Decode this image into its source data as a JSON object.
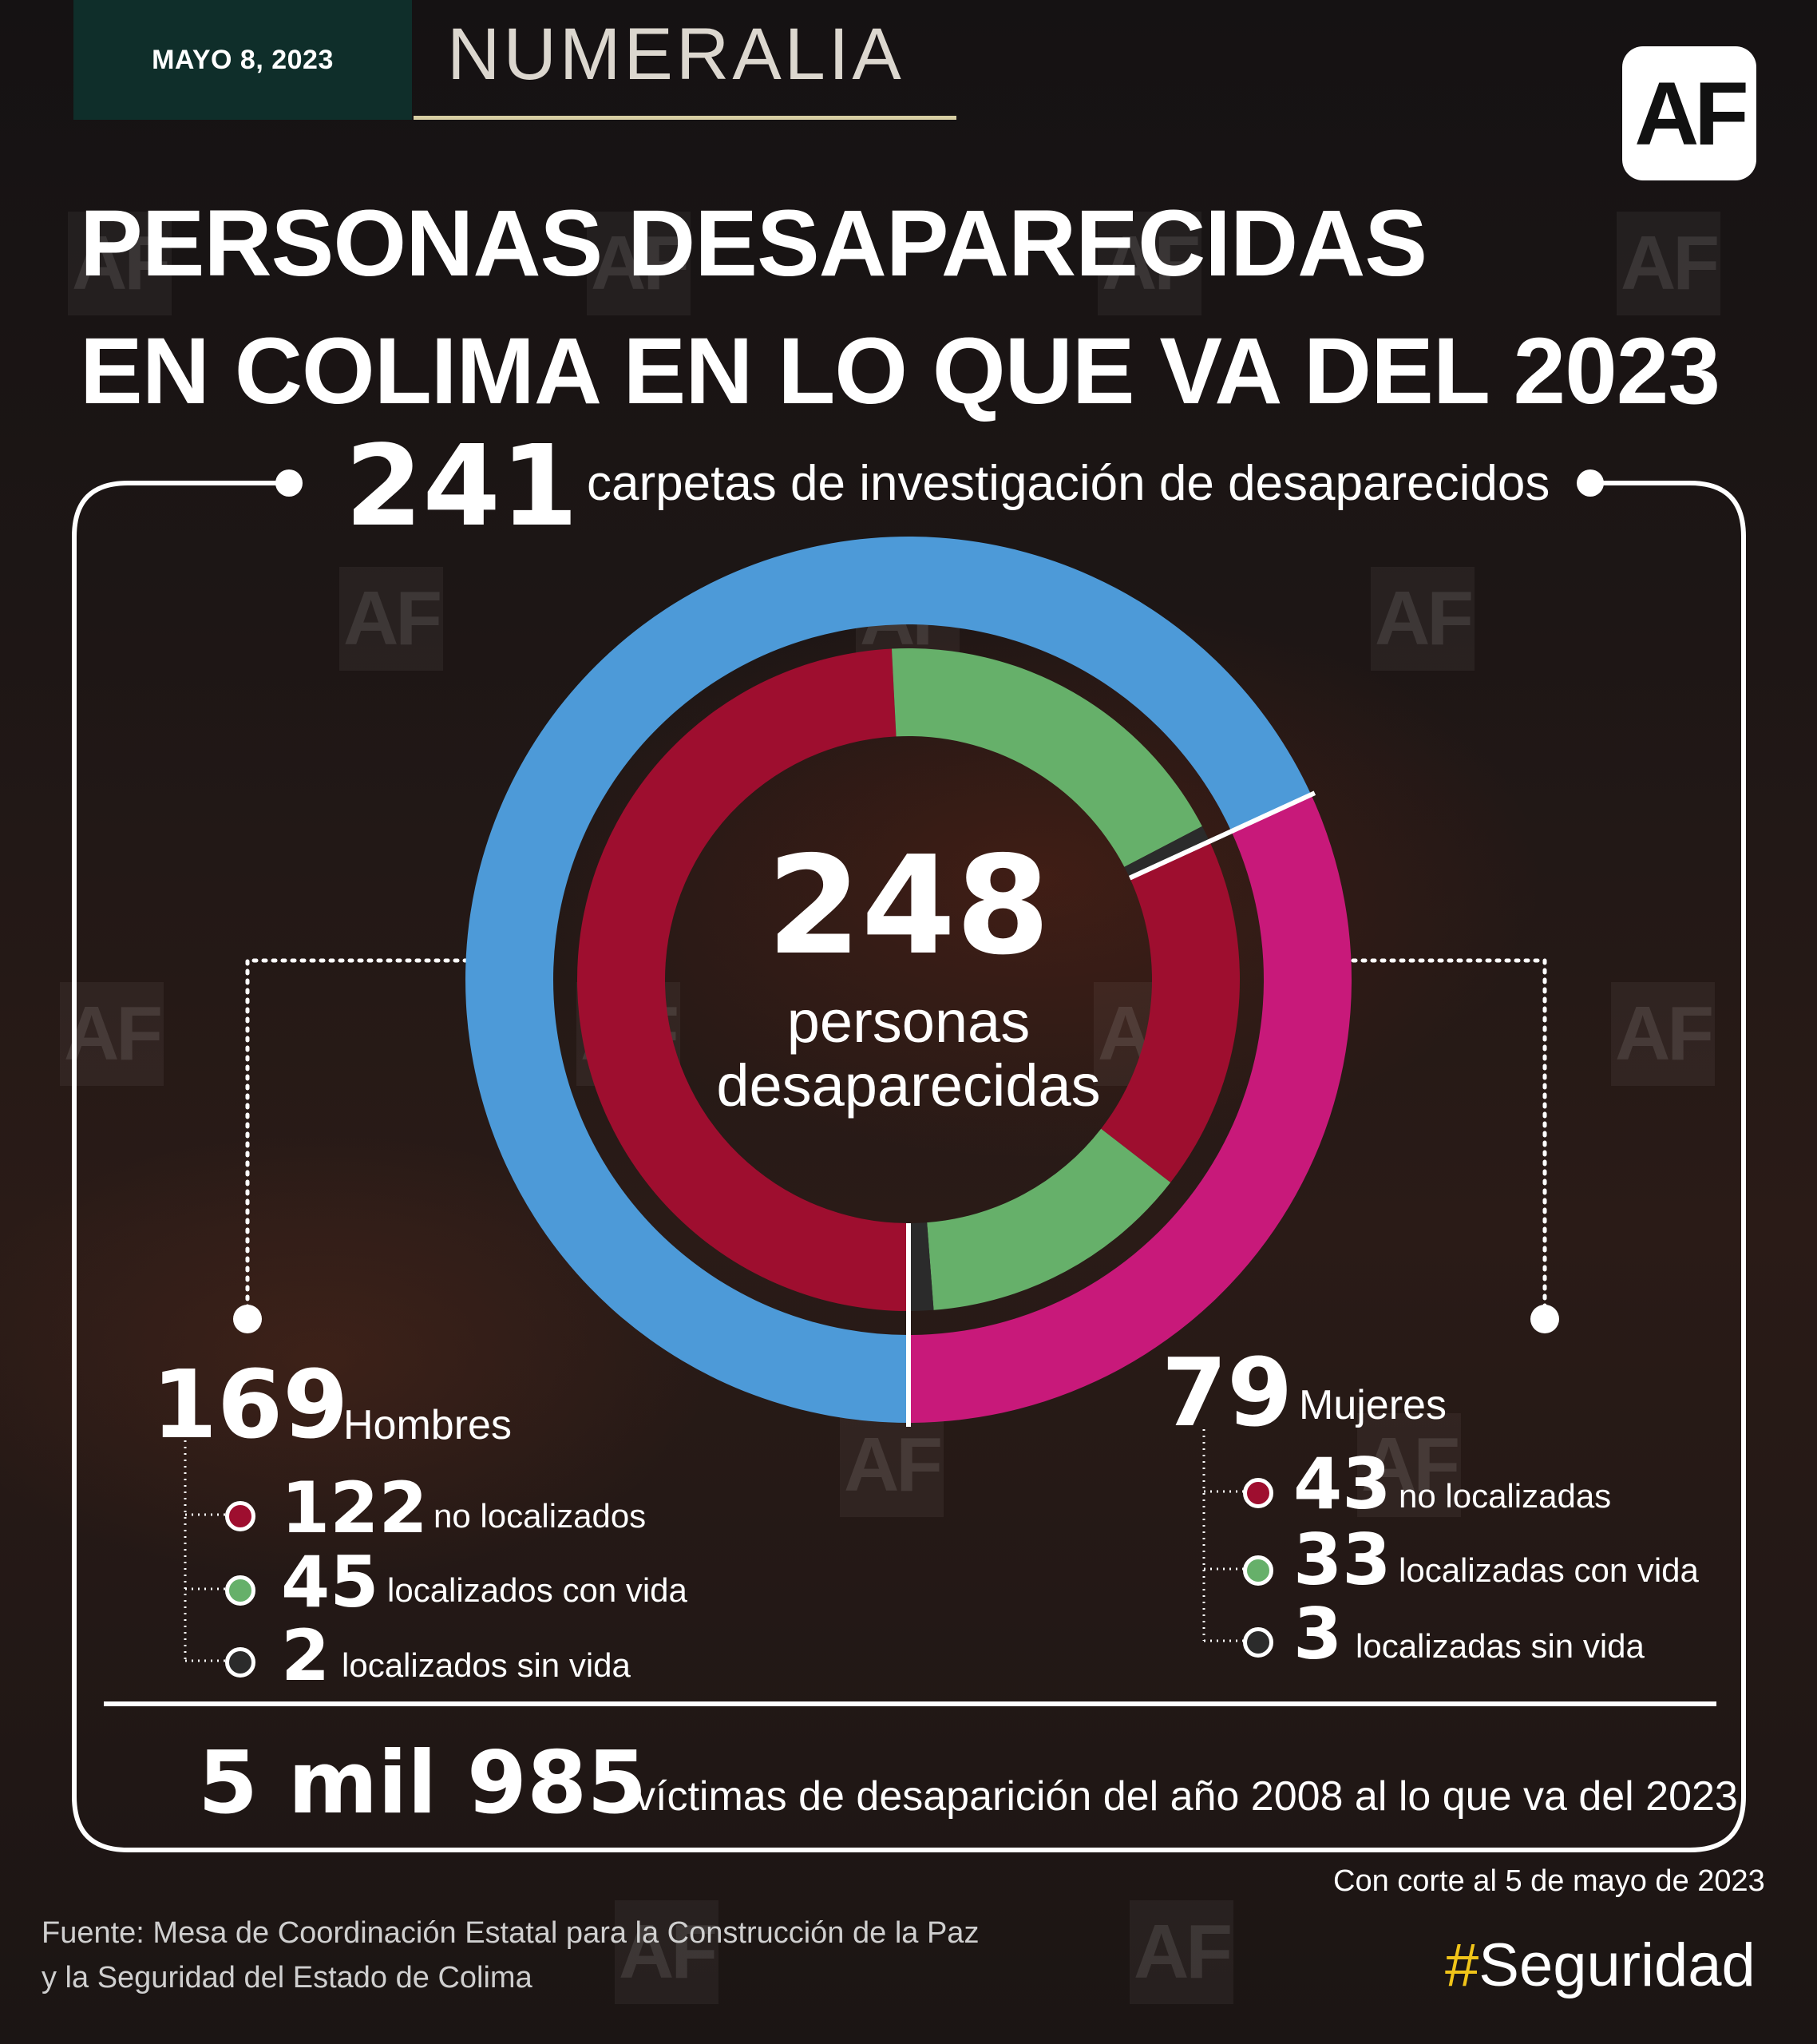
{
  "header": {
    "date": "MAYO 8, 2023",
    "section": "NUMERALIA",
    "logo": "AF"
  },
  "title": {
    "line1": "PERSONAS DESAPARECIDAS",
    "line2": "EN COLIMA EN LO QUE VA DEL 2023"
  },
  "carpetas": {
    "value": "241",
    "label": "carpetas de investigación de desaparecidos"
  },
  "center": {
    "value": "248",
    "label_line1": "personas",
    "label_line2": "desaparecidas"
  },
  "hombres": {
    "value": "169",
    "label": "Hombres",
    "items": [
      {
        "value": "122",
        "label": "no localizados"
      },
      {
        "value": "45",
        "label": "localizados con vida"
      },
      {
        "value": "2",
        "label": "localizados sin vida"
      }
    ]
  },
  "mujeres": {
    "value": "79",
    "label": "Mujeres",
    "items": [
      {
        "value": "43",
        "label": "no localizadas"
      },
      {
        "value": "33",
        "label": "localizadas con vida"
      },
      {
        "value": "3",
        "label": "localizadas sin vida"
      }
    ]
  },
  "historico": {
    "value": "5 mil 985",
    "label": "víctimas de desaparición del año 2008 al lo que va del 2023"
  },
  "corte": "Con corte al 5 de mayo de 2023",
  "fuente": {
    "line1": "Fuente: Mesa de Coordinación Estatal para la Construcción de la Paz",
    "line2": "y la Seguridad del Estado de Colima"
  },
  "hashtag": {
    "symbol": "#",
    "text": "Seguridad"
  },
  "watermark": "AF",
  "colors": {
    "hombres": "#4d9ad8",
    "mujeres": "#c8197a",
    "no_localizados": "#9e0e2f",
    "con_vida": "#66b06a",
    "sin_vida": "#2b2b2b",
    "date_box": "#0f2e2a",
    "hashtag": "#f0c419"
  },
  "chart_data": {
    "type": "pie",
    "donut": true,
    "total": 248,
    "outer_ring": {
      "categories": [
        "Hombres",
        "Mujeres"
      ],
      "values": [
        169,
        79
      ]
    },
    "inner_ring": {
      "categories": [
        "no localizados",
        "localizados con vida",
        "localizados sin vida",
        "no localizadas",
        "localizadas con vida",
        "localizadas sin vida"
      ],
      "values": [
        122,
        45,
        2,
        43,
        33,
        3
      ]
    }
  }
}
